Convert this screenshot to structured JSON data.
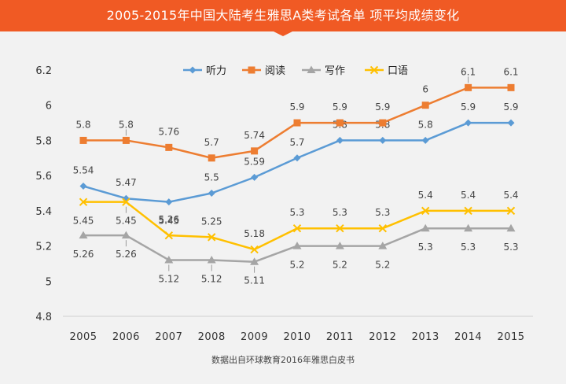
{
  "title": "2005-2015年中国大陆考生雅思A类考试各单 项平均成绩变化",
  "source": "数据出自环球教育2016年雅思白皮书",
  "colors": {
    "banner": "#f05a24",
    "background": "#f2f2f2"
  },
  "chart_data": {
    "type": "line",
    "categories": [
      "2005",
      "2006",
      "2007",
      "2008",
      "2009",
      "2010",
      "2011",
      "2012",
      "2013",
      "2014",
      "2015"
    ],
    "ylim": [
      4.8,
      6.2
    ],
    "yticks": [
      "4.8",
      "5",
      "5.2",
      "5.4",
      "5.6",
      "5.8",
      "6",
      "6.2"
    ],
    "ytick_values": [
      4.8,
      5.0,
      5.2,
      5.4,
      5.6,
      5.8,
      6.0,
      6.2
    ],
    "grid": false,
    "legend": "top",
    "series": [
      {
        "name": "听力",
        "color": "#5b9bd5",
        "marker": "diamond",
        "values": [
          5.54,
          5.47,
          5.45,
          5.5,
          5.59,
          5.7,
          5.8,
          5.8,
          5.8,
          5.9,
          5.9
        ],
        "labels": [
          "5.54",
          "5.47",
          "5.45",
          "5.5",
          "5.59",
          "5.7",
          "5.8",
          "5.8",
          "5.8",
          "5.9",
          "5.9"
        ]
      },
      {
        "name": "阅读",
        "color": "#ed7d31",
        "marker": "square",
        "values": [
          5.8,
          5.8,
          5.76,
          5.7,
          5.74,
          5.9,
          5.9,
          5.9,
          6.0,
          6.1,
          6.1
        ],
        "labels": [
          "5.8",
          "5.8",
          "5.76",
          "5.7",
          "5.74",
          "5.9",
          "5.9",
          "5.9",
          "6",
          "6.1",
          "6.1"
        ]
      },
      {
        "name": "写作",
        "color": "#a5a5a5",
        "marker": "triangle",
        "values": [
          5.26,
          5.26,
          5.12,
          5.12,
          5.11,
          5.2,
          5.2,
          5.2,
          5.3,
          5.3,
          5.3
        ],
        "labels": [
          "5.26",
          "5.26",
          "5.12",
          "5.12",
          "5.11",
          "5.2",
          "5.2",
          "5.2",
          "5.3",
          "5.3",
          "5.3"
        ]
      },
      {
        "name": "口语",
        "color": "#ffc000",
        "marker": "x",
        "values": [
          5.45,
          5.45,
          5.26,
          5.25,
          5.18,
          5.3,
          5.3,
          5.3,
          5.4,
          5.4,
          5.4
        ],
        "labels": [
          "5.45",
          "5.45",
          "5.26",
          "5.25",
          "5.18",
          "5.3",
          "5.3",
          "5.3",
          "5.4",
          "5.4",
          "5.4"
        ]
      }
    ]
  }
}
